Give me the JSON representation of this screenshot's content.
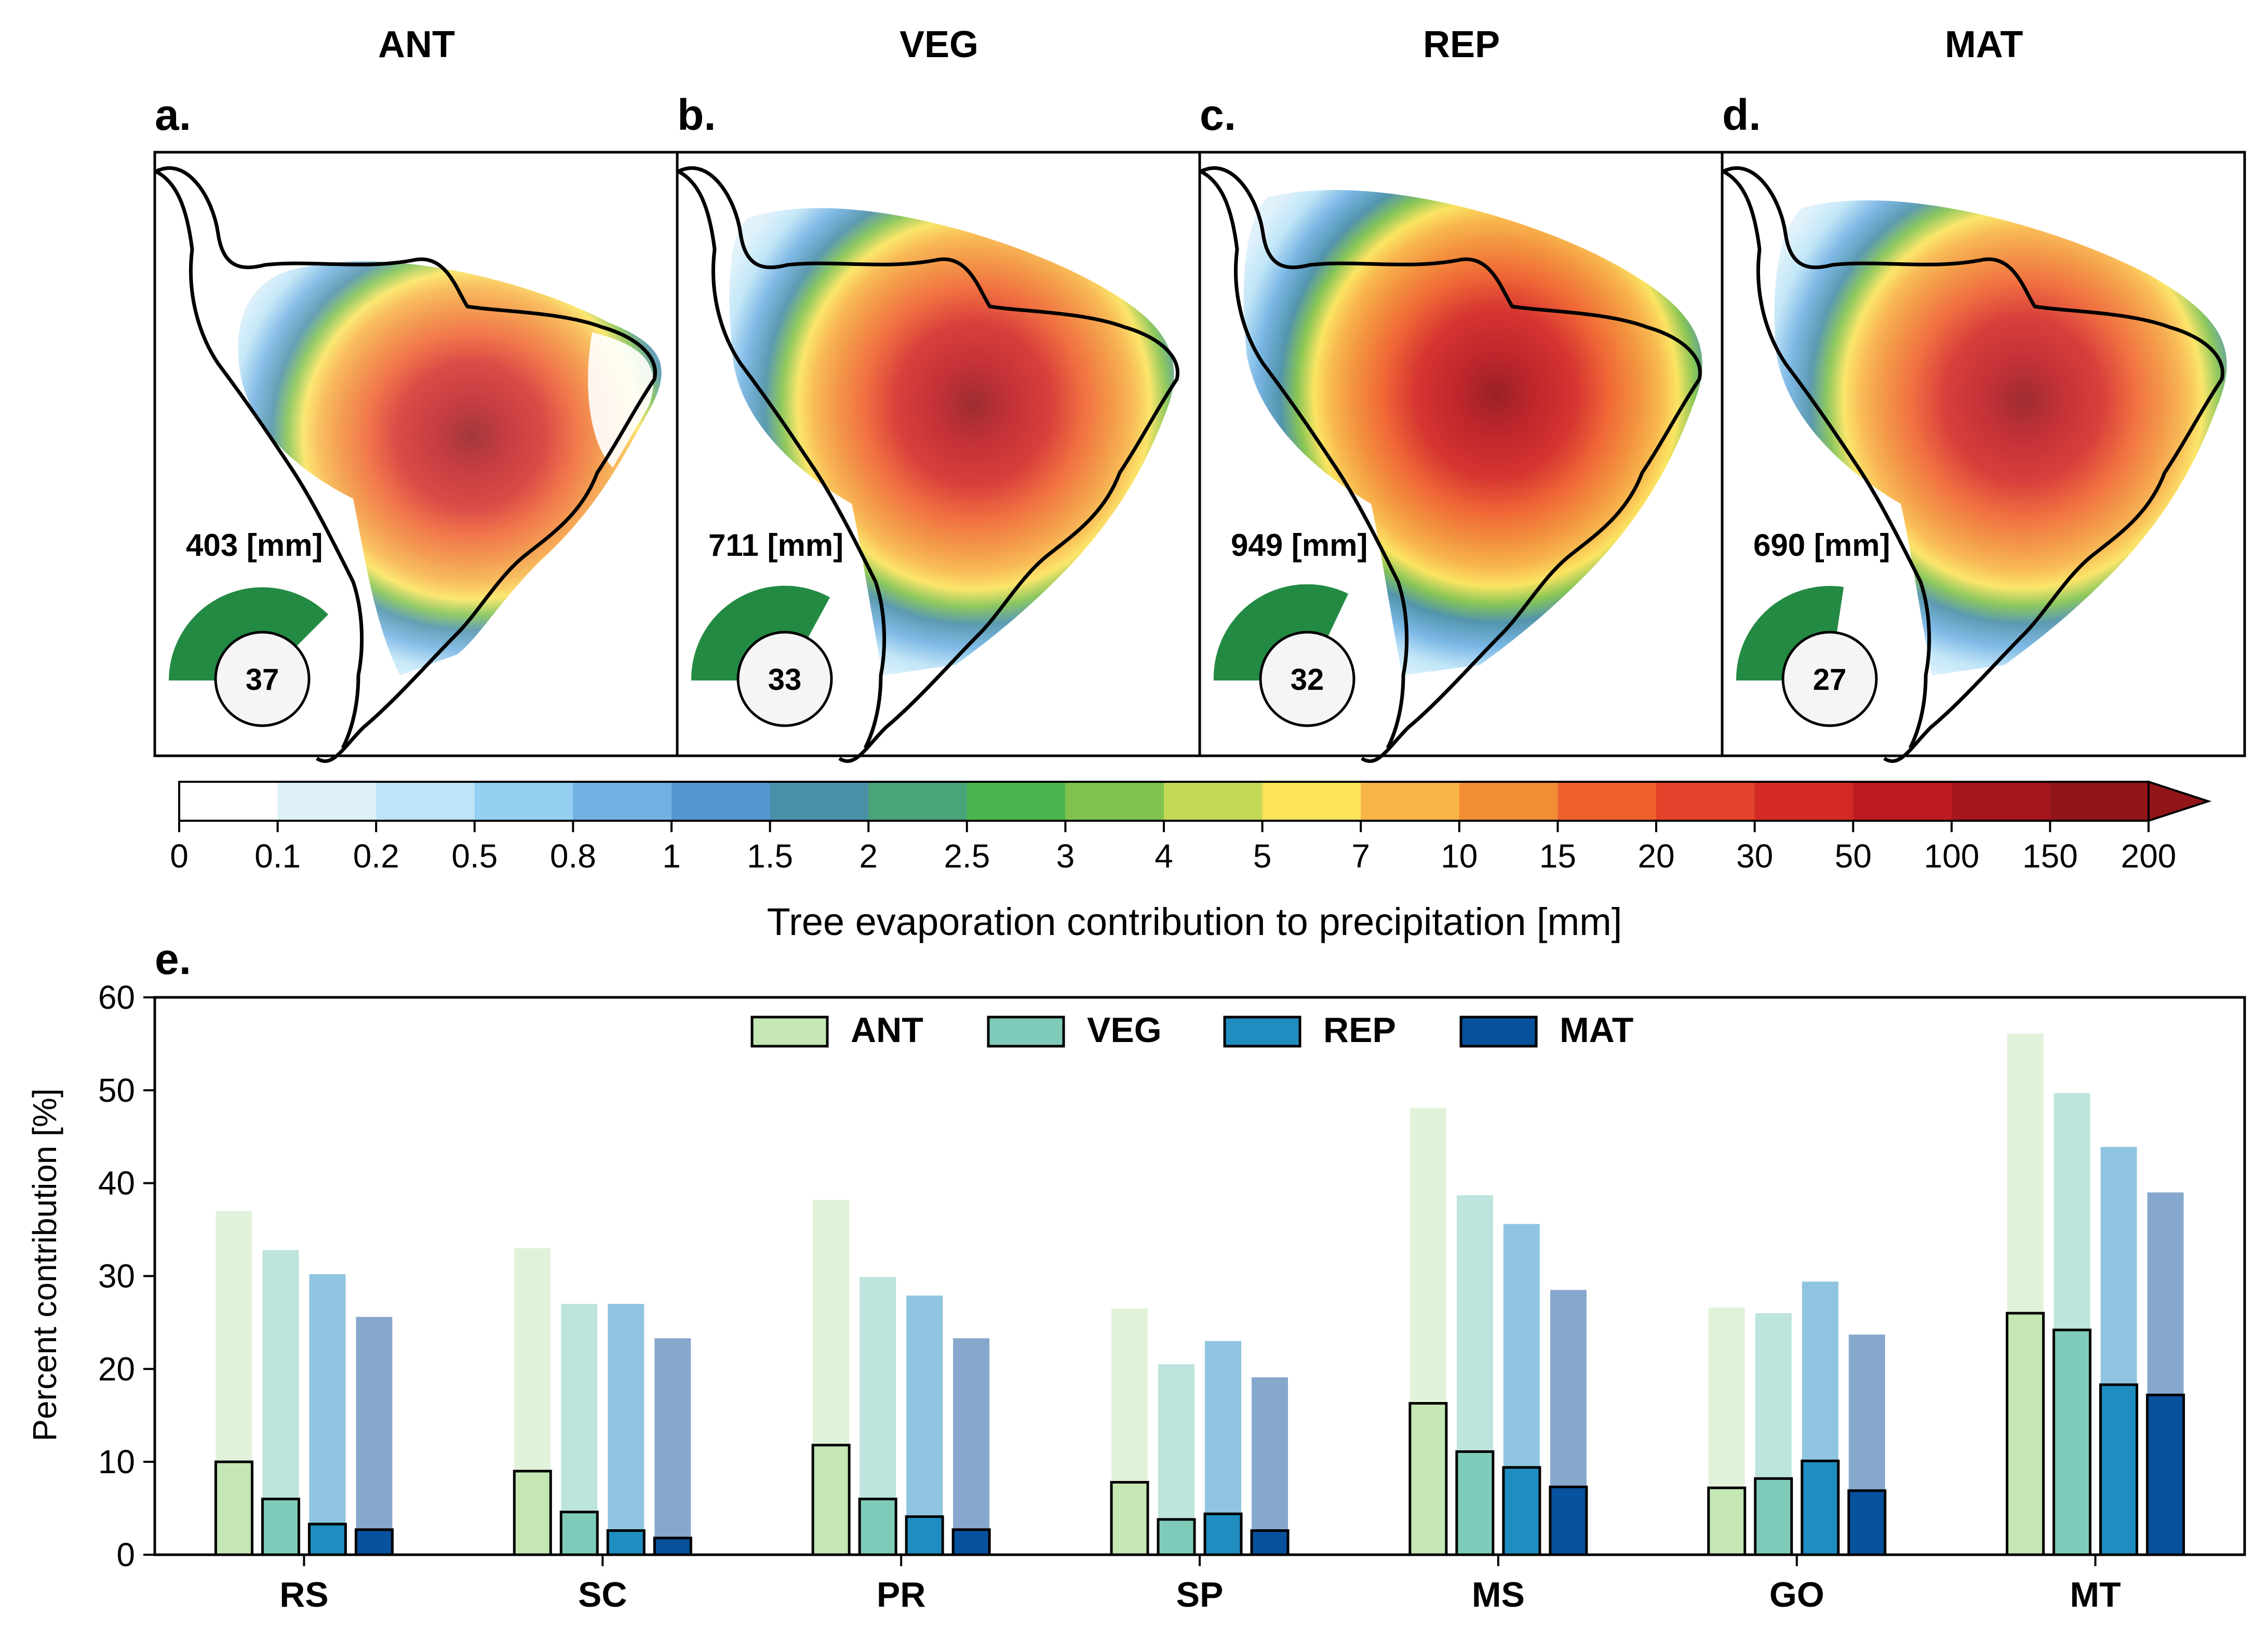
{
  "maps": {
    "panels": [
      {
        "title": "ANT",
        "letter": "a.",
        "total": "403 [mm]",
        "percent": 37
      },
      {
        "title": "VEG",
        "letter": "b.",
        "total": "711 [mm]",
        "percent": 33
      },
      {
        "title": "REP",
        "letter": "c.",
        "total": "949 [mm]",
        "percent": 32
      },
      {
        "title": "MAT",
        "letter": "d.",
        "total": "690 [mm]",
        "percent": 27
      }
    ],
    "colorbar": {
      "label": "Tree evaporation contribution to precipitation [mm]",
      "ticks": [
        "0",
        "0.1",
        "0.2",
        "0.5",
        "0.8",
        "1",
        "1.5",
        "2",
        "2.5",
        "3",
        "4",
        "5",
        "7",
        "10",
        "15",
        "20",
        "30",
        "50",
        "100",
        "150",
        "200"
      ],
      "colors": [
        "#ffffff",
        "#def1fb",
        "#bde4f7",
        "#93d0f2",
        "#72b2e3",
        "#5597d1",
        "#4a8fa8",
        "#4aa47a",
        "#4db54f",
        "#80c24d",
        "#c4d957",
        "#fbe35a",
        "#f8b445",
        "#f28d35",
        "#ef612c",
        "#e2432a",
        "#d42a26",
        "#bd1b21",
        "#a5171d",
        "#92151a"
      ],
      "extend": "max"
    },
    "pie_color": "#238a43"
  },
  "chart_data": {
    "type": "bar",
    "panel_letter": "e.",
    "categories": [
      "RS",
      "SC",
      "PR",
      "SP",
      "MS",
      "GO",
      "MT"
    ],
    "ylabel": "Percent contribution [%]",
    "ylim": [
      0,
      60
    ],
    "yticks": [
      "0",
      "10",
      "20",
      "30",
      "40",
      "50",
      "60"
    ],
    "legend_placement": "top-center",
    "series": [
      {
        "name": "ANT",
        "color": "#c4e7b4",
        "light_color": "#e1f2da",
        "total": [
          37.0,
          33.0,
          38.2,
          26.5,
          48.1,
          26.6,
          56.1
        ],
        "values": [
          10.0,
          9.0,
          11.8,
          7.8,
          16.3,
          7.2,
          26.0
        ]
      },
      {
        "name": "VEG",
        "color": "#7fcbb9",
        "light_color": "#bde4dd",
        "total": [
          32.8,
          27.0,
          29.9,
          20.5,
          38.7,
          26.0,
          49.7
        ],
        "values": [
          6.0,
          4.6,
          6.0,
          3.8,
          11.1,
          8.2,
          24.2
        ]
      },
      {
        "name": "REP",
        "color": "#1f8dbf",
        "light_color": "#8fc5e0",
        "total": [
          30.2,
          27.0,
          27.9,
          23.0,
          35.6,
          29.4,
          43.9
        ],
        "values": [
          3.3,
          2.6,
          4.1,
          4.4,
          9.4,
          10.1,
          18.3
        ]
      },
      {
        "name": "MAT",
        "color": "#08519c",
        "light_color": "#86a8cd",
        "total": [
          25.6,
          23.3,
          23.3,
          19.1,
          28.5,
          23.7,
          39.0
        ],
        "values": [
          2.7,
          1.8,
          2.7,
          2.6,
          7.3,
          6.9,
          17.2
        ]
      }
    ]
  }
}
